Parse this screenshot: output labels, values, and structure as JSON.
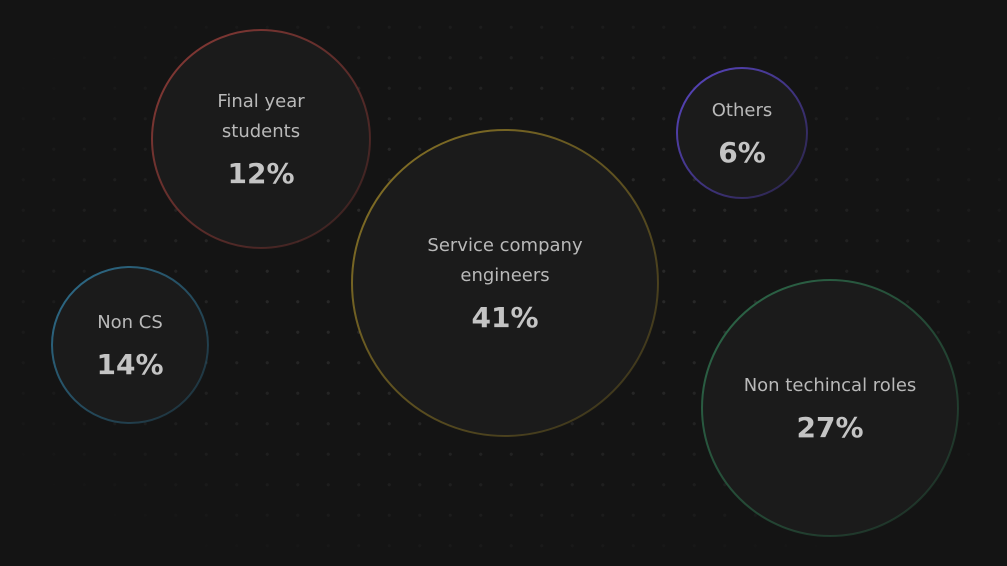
{
  "chart_data": {
    "type": "bubble",
    "title": "",
    "series": [
      {
        "label_lines": [
          "Final year",
          "students"
        ],
        "label": "Final year students",
        "value": 12,
        "display": "12%",
        "color": "#8a3a36"
      },
      {
        "label_lines": [
          "Others"
        ],
        "label": "Others",
        "value": 6,
        "display": "6%",
        "color": "#5a46c4"
      },
      {
        "label_lines": [
          "Service company",
          "engineers"
        ],
        "label": "Service company engineers",
        "value": 41,
        "display": "41%",
        "color": "#8a7526"
      },
      {
        "label_lines": [
          "Non CS"
        ],
        "label": "Non CS",
        "value": 14,
        "display": "14%",
        "color": "#2e6f8e"
      },
      {
        "label_lines": [
          "Non techincal roles"
        ],
        "label": "Non techincal roles",
        "value": 27,
        "display": "27%",
        "color": "#2d6a4a"
      }
    ]
  }
}
